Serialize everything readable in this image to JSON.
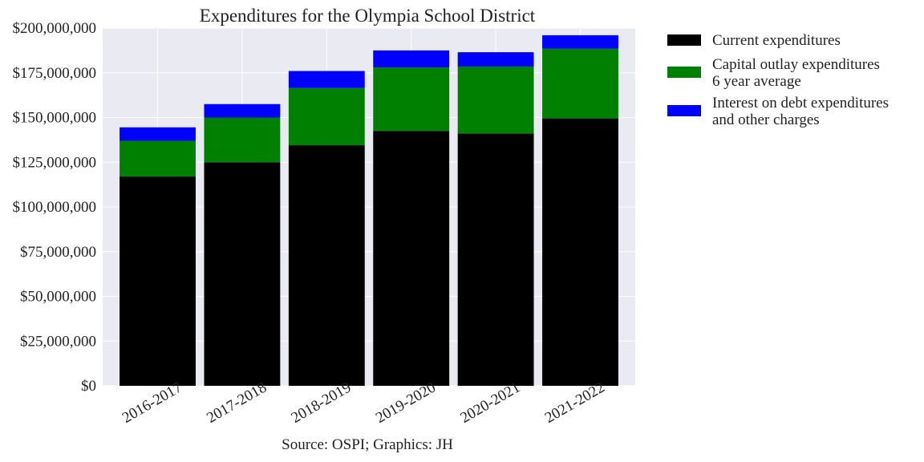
{
  "chart_data": {
    "type": "bar",
    "stacked": true,
    "title": "Expenditures for the Olympia School District",
    "xlabel": "Source: OSPI; Graphics: JH",
    "ylabel": "",
    "ylim": [
      0,
      200000000
    ],
    "yticks": [
      0,
      25000000,
      50000000,
      75000000,
      100000000,
      125000000,
      150000000,
      175000000,
      200000000
    ],
    "ytick_labels": [
      "$0",
      "$25,000,000",
      "$50,000,000",
      "$75,000,000",
      "$100,000,000",
      "$125,000,000",
      "$150,000,000",
      "$175,000,000",
      "$200,000,000"
    ],
    "categories": [
      "2016-2017",
      "2017-2018",
      "2018-2019",
      "2019-2020",
      "2020-2021",
      "2021-2022"
    ],
    "series": [
      {
        "name": "Current expenditures",
        "color": "#000000",
        "values": [
          117000000,
          125000000,
          134500000,
          142500000,
          141000000,
          149500000
        ]
      },
      {
        "name": "Capital outlay expenditures 6 year average",
        "color": "#008000",
        "values": [
          20000000,
          25000000,
          32000000,
          35500000,
          37500000,
          39000000
        ]
      },
      {
        "name": "Interest on debt expenditures and other charges",
        "color": "#0000ff",
        "values": [
          7500000,
          7500000,
          9500000,
          9500000,
          8000000,
          7500000
        ]
      }
    ],
    "legend": {
      "position": "right",
      "entries": [
        {
          "line1": "Current expenditures",
          "line2": "",
          "color": "#000000"
        },
        {
          "line1": "Capital outlay expenditures",
          "line2": "6 year average",
          "color": "#008000"
        },
        {
          "line1": "Interest on debt expenditures",
          "line2": "and other charges",
          "color": "#0000ff"
        }
      ]
    },
    "grid": true,
    "background": "#eaeaf2"
  }
}
